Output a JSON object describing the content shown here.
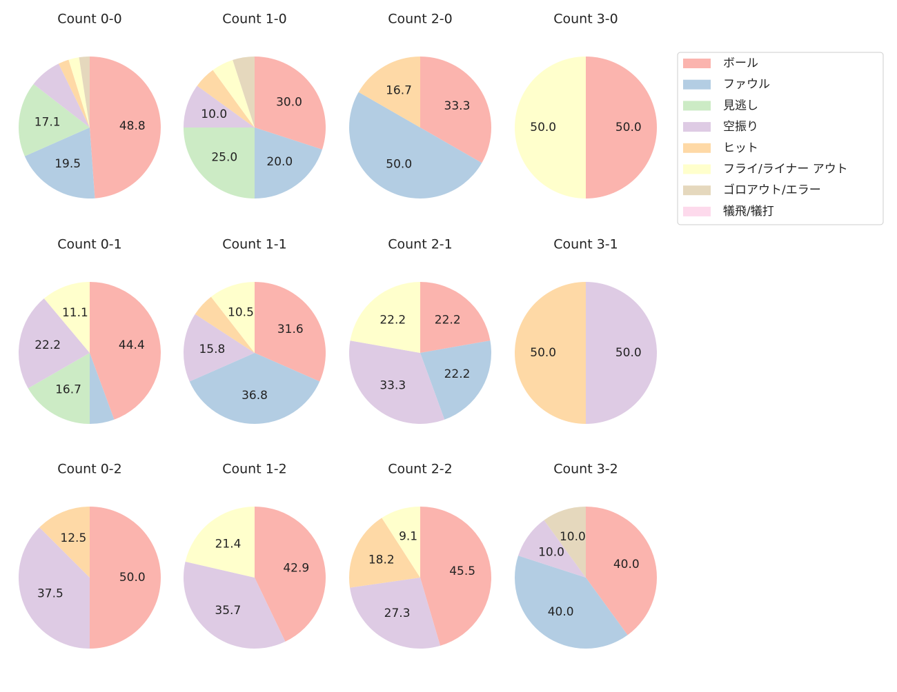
{
  "legend": [
    {
      "name": "ボール",
      "color": "#fbb4ae"
    },
    {
      "name": "ファウル",
      "color": "#b3cde3"
    },
    {
      "name": "見逃し",
      "color": "#ccebc5"
    },
    {
      "name": "空振り",
      "color": "#decbe4"
    },
    {
      "name": "ヒット",
      "color": "#fed9a6"
    },
    {
      "name": "フライ/ライナー アウト",
      "color": "#ffffcc"
    },
    {
      "name": "ゴロアウト/エラー",
      "color": "#e5d8bd"
    },
    {
      "name": "犠飛/犠打",
      "color": "#fddaec"
    }
  ],
  "chart_data": [
    {
      "type": "pie",
      "title": "Count 0-0",
      "values": [
        48.8,
        19.5,
        17.1,
        7.3,
        2.4,
        2.4,
        2.4,
        0
      ],
      "value_labels": [
        "48.8",
        "19.5",
        "17.1",
        null,
        null,
        null,
        null,
        null
      ]
    },
    {
      "type": "pie",
      "title": "Count 1-0",
      "values": [
        30,
        20,
        25,
        10,
        5,
        5,
        5,
        0
      ],
      "value_labels": [
        "30.0",
        "20.0",
        "25.0",
        "10.0",
        null,
        null,
        null,
        null
      ]
    },
    {
      "type": "pie",
      "title": "Count 2-0",
      "values": [
        33.3,
        50,
        0,
        0,
        16.7,
        0,
        0,
        0
      ],
      "value_labels": [
        "33.3",
        "50.0",
        null,
        null,
        "16.7",
        null,
        null,
        null
      ]
    },
    {
      "type": "pie",
      "title": "Count 3-0",
      "values": [
        50,
        0,
        0,
        0,
        0,
        50,
        0,
        0
      ],
      "value_labels": [
        "50.0",
        null,
        null,
        null,
        null,
        "50.0",
        null,
        null
      ]
    },
    {
      "type": "pie",
      "title": "Count 0-1",
      "values": [
        44.4,
        5.6,
        16.7,
        22.2,
        0,
        11.1,
        0,
        0
      ],
      "value_labels": [
        "44.4",
        null,
        "16.7",
        "22.2",
        null,
        "11.1",
        null,
        null
      ]
    },
    {
      "type": "pie",
      "title": "Count 1-1",
      "values": [
        31.6,
        36.8,
        0,
        15.8,
        5.3,
        10.5,
        0,
        0
      ],
      "value_labels": [
        "31.6",
        "36.8",
        null,
        "15.8",
        null,
        "10.5",
        null,
        null
      ]
    },
    {
      "type": "pie",
      "title": "Count 2-1",
      "values": [
        22.2,
        22.2,
        0,
        33.3,
        0,
        22.2,
        0,
        0
      ],
      "value_labels": [
        "22.2",
        "22.2",
        null,
        "33.3",
        null,
        "22.2",
        null,
        null
      ]
    },
    {
      "type": "pie",
      "title": "Count 3-1",
      "values": [
        0,
        0,
        0,
        50,
        50,
        0,
        0,
        0
      ],
      "value_labels": [
        null,
        null,
        null,
        "50.0",
        "50.0",
        null,
        null,
        null
      ]
    },
    {
      "type": "pie",
      "title": "Count 0-2",
      "values": [
        50,
        0,
        0,
        37.5,
        12.5,
        0,
        0,
        0
      ],
      "value_labels": [
        "50.0",
        null,
        null,
        "37.5",
        "12.5",
        null,
        null,
        null
      ]
    },
    {
      "type": "pie",
      "title": "Count 1-2",
      "values": [
        42.9,
        0,
        0,
        35.7,
        0,
        21.4,
        0,
        0
      ],
      "value_labels": [
        "42.9",
        null,
        null,
        "35.7",
        null,
        "21.4",
        null,
        null
      ]
    },
    {
      "type": "pie",
      "title": "Count 2-2",
      "values": [
        45.5,
        0,
        0,
        27.3,
        18.2,
        9.1,
        0,
        0
      ],
      "value_labels": [
        "45.5",
        null,
        null,
        "27.3",
        "18.2",
        "9.1",
        null,
        null
      ]
    },
    {
      "type": "pie",
      "title": "Count 3-2",
      "values": [
        40,
        40,
        0,
        10,
        0,
        0,
        10,
        0
      ],
      "value_labels": [
        "40.0",
        "40.0",
        null,
        "10.0",
        null,
        null,
        "10.0",
        null
      ]
    }
  ]
}
